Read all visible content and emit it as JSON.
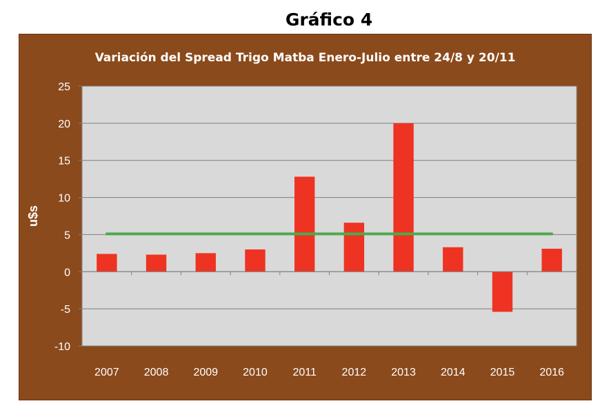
{
  "figure_title": "Gráfico 4",
  "colors": {
    "panel_bg": "#8b4a1c",
    "plot_bg": "#d9d9d9",
    "bar": "#ee3322",
    "avg_line": "#4caa4c",
    "text": "#ffffff"
  },
  "chart_data": {
    "type": "bar",
    "title": "Variación del Spread Trigo Matba Enero-Julio entre  24/8 y 20/11",
    "xlabel": "",
    "ylabel": "u$s",
    "categories": [
      "2007",
      "2008",
      "2009",
      "2010",
      "2011",
      "2012",
      "2013",
      "2014",
      "2015",
      "2016"
    ],
    "series": [
      {
        "values": [
          2.4,
          2.3,
          2.5,
          3.0,
          12.8,
          6.6,
          20.0,
          3.3,
          -5.4,
          3.1
        ]
      }
    ],
    "reference_line": {
      "value": 5.1
    },
    "ylim": [
      -10,
      25
    ],
    "yticks": [
      25,
      20,
      15,
      10,
      5,
      0,
      -5,
      -10
    ],
    "grid": true
  }
}
